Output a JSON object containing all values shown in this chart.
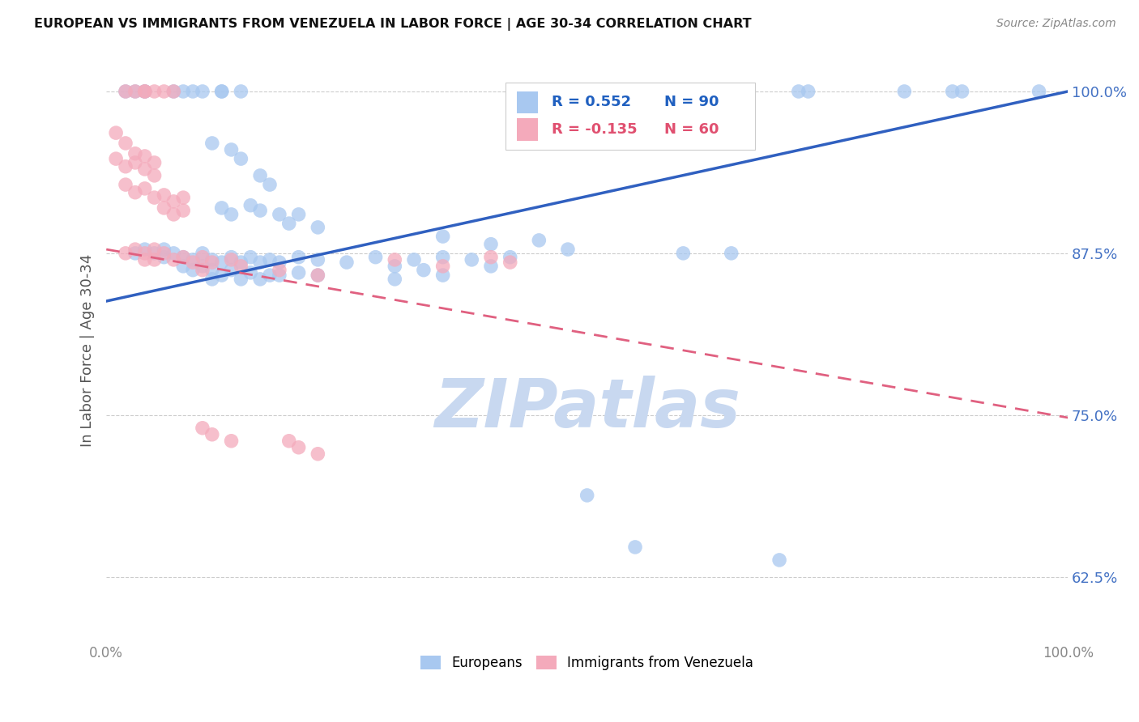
{
  "title": "EUROPEAN VS IMMIGRANTS FROM VENEZUELA IN LABOR FORCE | AGE 30-34 CORRELATION CHART",
  "source_text": "Source: ZipAtlas.com",
  "ylabel": "In Labor Force | Age 30-34",
  "xlim": [
    0.0,
    1.0
  ],
  "ylim": [
    0.575,
    1.025
  ],
  "yticks": [
    0.625,
    0.75,
    0.875,
    1.0
  ],
  "ytick_labels": [
    "62.5%",
    "75.0%",
    "87.5%",
    "100.0%"
  ],
  "xticks": [
    0.0,
    0.2,
    0.4,
    0.6,
    0.8,
    1.0
  ],
  "xtick_labels": [
    "0.0%",
    "",
    "",
    "",
    "",
    "100.0%"
  ],
  "legend_blue_r": "0.552",
  "legend_blue_n": "90",
  "legend_pink_r": "-0.135",
  "legend_pink_n": "60",
  "blue_color": "#A8C8F0",
  "pink_color": "#F4AABB",
  "blue_line_color": "#3060C0",
  "pink_line_color": "#E06080",
  "watermark": "ZIPatlas",
  "watermark_color": "#C8D8F0",
  "blue_scatter": [
    [
      0.02,
      1.0
    ],
    [
      0.03,
      1.0
    ],
    [
      0.04,
      1.0
    ],
    [
      0.04,
      1.0
    ],
    [
      0.07,
      1.0
    ],
    [
      0.08,
      1.0
    ],
    [
      0.09,
      1.0
    ],
    [
      0.1,
      1.0
    ],
    [
      0.12,
      1.0
    ],
    [
      0.12,
      1.0
    ],
    [
      0.14,
      1.0
    ],
    [
      0.5,
      1.0
    ],
    [
      0.55,
      1.0
    ],
    [
      0.72,
      1.0
    ],
    [
      0.73,
      1.0
    ],
    [
      0.83,
      1.0
    ],
    [
      0.88,
      1.0
    ],
    [
      0.89,
      1.0
    ],
    [
      0.97,
      1.0
    ],
    [
      0.11,
      0.96
    ],
    [
      0.13,
      0.955
    ],
    [
      0.14,
      0.948
    ],
    [
      0.16,
      0.935
    ],
    [
      0.17,
      0.928
    ],
    [
      0.03,
      0.875
    ],
    [
      0.04,
      0.878
    ],
    [
      0.05,
      0.875
    ],
    [
      0.06,
      0.878
    ],
    [
      0.06,
      0.872
    ],
    [
      0.07,
      0.875
    ],
    [
      0.08,
      0.872
    ],
    [
      0.08,
      0.865
    ],
    [
      0.09,
      0.87
    ],
    [
      0.09,
      0.862
    ],
    [
      0.1,
      0.875
    ],
    [
      0.1,
      0.865
    ],
    [
      0.11,
      0.87
    ],
    [
      0.11,
      0.862
    ],
    [
      0.11,
      0.855
    ],
    [
      0.12,
      0.868
    ],
    [
      0.12,
      0.858
    ],
    [
      0.13,
      0.872
    ],
    [
      0.13,
      0.862
    ],
    [
      0.14,
      0.868
    ],
    [
      0.14,
      0.855
    ],
    [
      0.15,
      0.872
    ],
    [
      0.15,
      0.86
    ],
    [
      0.16,
      0.868
    ],
    [
      0.16,
      0.855
    ],
    [
      0.17,
      0.87
    ],
    [
      0.17,
      0.858
    ],
    [
      0.18,
      0.868
    ],
    [
      0.18,
      0.858
    ],
    [
      0.2,
      0.872
    ],
    [
      0.2,
      0.86
    ],
    [
      0.22,
      0.87
    ],
    [
      0.22,
      0.858
    ],
    [
      0.25,
      0.868
    ],
    [
      0.28,
      0.872
    ],
    [
      0.3,
      0.865
    ],
    [
      0.3,
      0.855
    ],
    [
      0.32,
      0.87
    ],
    [
      0.33,
      0.862
    ],
    [
      0.35,
      0.872
    ],
    [
      0.35,
      0.858
    ],
    [
      0.38,
      0.87
    ],
    [
      0.4,
      0.865
    ],
    [
      0.42,
      0.872
    ],
    [
      0.12,
      0.91
    ],
    [
      0.13,
      0.905
    ],
    [
      0.15,
      0.912
    ],
    [
      0.16,
      0.908
    ],
    [
      0.18,
      0.905
    ],
    [
      0.19,
      0.898
    ],
    [
      0.2,
      0.905
    ],
    [
      0.22,
      0.895
    ],
    [
      0.35,
      0.888
    ],
    [
      0.4,
      0.882
    ],
    [
      0.45,
      0.885
    ],
    [
      0.48,
      0.878
    ],
    [
      0.6,
      0.875
    ],
    [
      0.65,
      0.875
    ],
    [
      0.5,
      0.688
    ],
    [
      0.55,
      0.648
    ],
    [
      0.7,
      0.638
    ]
  ],
  "pink_scatter": [
    [
      0.02,
      1.0
    ],
    [
      0.03,
      1.0
    ],
    [
      0.04,
      1.0
    ],
    [
      0.04,
      1.0
    ],
    [
      0.05,
      1.0
    ],
    [
      0.06,
      1.0
    ],
    [
      0.07,
      1.0
    ],
    [
      0.01,
      0.968
    ],
    [
      0.02,
      0.96
    ],
    [
      0.01,
      0.948
    ],
    [
      0.02,
      0.942
    ],
    [
      0.03,
      0.952
    ],
    [
      0.03,
      0.945
    ],
    [
      0.04,
      0.95
    ],
    [
      0.04,
      0.94
    ],
    [
      0.05,
      0.945
    ],
    [
      0.05,
      0.935
    ],
    [
      0.02,
      0.928
    ],
    [
      0.03,
      0.922
    ],
    [
      0.04,
      0.925
    ],
    [
      0.05,
      0.918
    ],
    [
      0.06,
      0.92
    ],
    [
      0.06,
      0.91
    ],
    [
      0.07,
      0.915
    ],
    [
      0.07,
      0.905
    ],
    [
      0.08,
      0.918
    ],
    [
      0.08,
      0.908
    ],
    [
      0.02,
      0.875
    ],
    [
      0.03,
      0.878
    ],
    [
      0.04,
      0.875
    ],
    [
      0.04,
      0.87
    ],
    [
      0.05,
      0.878
    ],
    [
      0.05,
      0.87
    ],
    [
      0.06,
      0.875
    ],
    [
      0.07,
      0.87
    ],
    [
      0.08,
      0.872
    ],
    [
      0.09,
      0.868
    ],
    [
      0.1,
      0.872
    ],
    [
      0.1,
      0.862
    ],
    [
      0.11,
      0.868
    ],
    [
      0.13,
      0.87
    ],
    [
      0.14,
      0.865
    ],
    [
      0.18,
      0.862
    ],
    [
      0.22,
      0.858
    ],
    [
      0.3,
      0.87
    ],
    [
      0.35,
      0.865
    ],
    [
      0.4,
      0.872
    ],
    [
      0.42,
      0.868
    ],
    [
      0.1,
      0.74
    ],
    [
      0.11,
      0.735
    ],
    [
      0.13,
      0.73
    ],
    [
      0.19,
      0.73
    ],
    [
      0.2,
      0.725
    ],
    [
      0.22,
      0.72
    ]
  ],
  "blue_line_y_start": 0.838,
  "blue_line_y_end": 1.0,
  "pink_line_y_start": 0.878,
  "pink_line_y_end": 0.748
}
